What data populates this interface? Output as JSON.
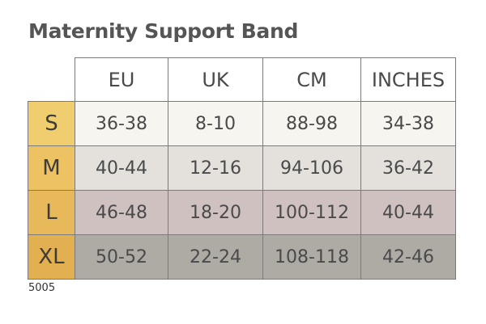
{
  "title": "Maternity Support Band",
  "columns": [
    "EU",
    "UK",
    "CM",
    "INCHES"
  ],
  "rows": [
    {
      "size": "S",
      "values": [
        "36-38",
        "8-10",
        "88-98",
        "34-38"
      ],
      "label_color": "#f0cd6e",
      "row_color": "#f7f5ef"
    },
    {
      "size": "M",
      "values": [
        "40-44",
        "12-16",
        "94-106",
        "36-42"
      ],
      "label_color": "#ecc263",
      "row_color": "#e4e1dd"
    },
    {
      "size": "L",
      "values": [
        "46-48",
        "18-20",
        "100-112",
        "40-44"
      ],
      "label_color": "#e8b95b",
      "row_color": "#cec1c0"
    },
    {
      "size": "XL",
      "values": [
        "50-52",
        "22-24",
        "108-118",
        "42-46"
      ],
      "label_color": "#e2b051",
      "row_color": "#aeaaa4"
    }
  ],
  "code": "5005"
}
